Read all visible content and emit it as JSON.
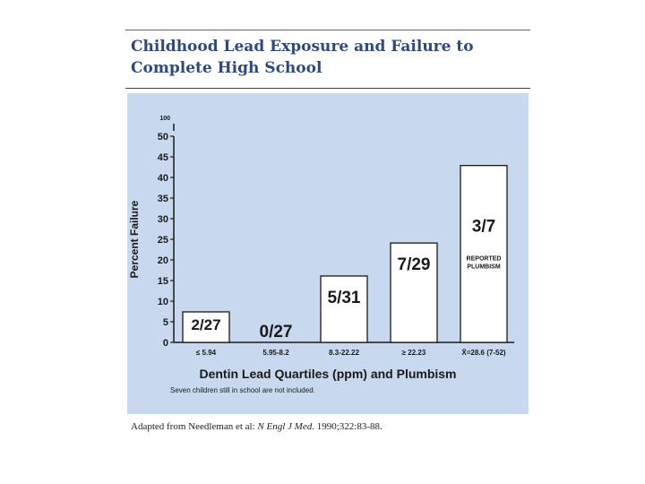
{
  "header": {
    "title": "Childhood Lead Exposure and Failure to Complete High School"
  },
  "footer": {
    "source_prefix": "Adapted from Needleman et al:",
    "source_journal": "N Engl J Med.",
    "source_citation": "1990;322:83-88."
  },
  "chart_data": {
    "type": "bar",
    "title": "Childhood Lead Exposure and Failure to Complete High School",
    "xlabel": "Dentin Lead Quartiles (ppm) and Plumbism",
    "ylabel": "Percent Failure",
    "ylim": [
      0,
      50
    ],
    "yticks": [
      0,
      5,
      10,
      15,
      20,
      25,
      30,
      35,
      40,
      45,
      50
    ],
    "ytick_break_label": "100",
    "categories": [
      "≤ 5.94",
      "5.95-8.2",
      "8.3-22.22",
      "≥ 22.23",
      "X̄=28.6 (7-52)"
    ],
    "values": [
      7.4,
      0,
      16.1,
      24.1,
      42.9
    ],
    "bar_labels": [
      "2/27",
      "0/27",
      "5/31",
      "7/29",
      "3/7"
    ],
    "annotations": [
      {
        "bar": 4,
        "text": [
          "REPORTED",
          "PLUMBISM"
        ]
      }
    ],
    "footnote": "Seven children still in school are not included.",
    "grid": false,
    "legend": "none",
    "colors": {
      "background": "#c8d8ee",
      "bar_fill": "#ffffff",
      "bar_stroke": "#1a1a1a",
      "text": "#1a1a1a",
      "title": "#2f4a7a"
    }
  }
}
